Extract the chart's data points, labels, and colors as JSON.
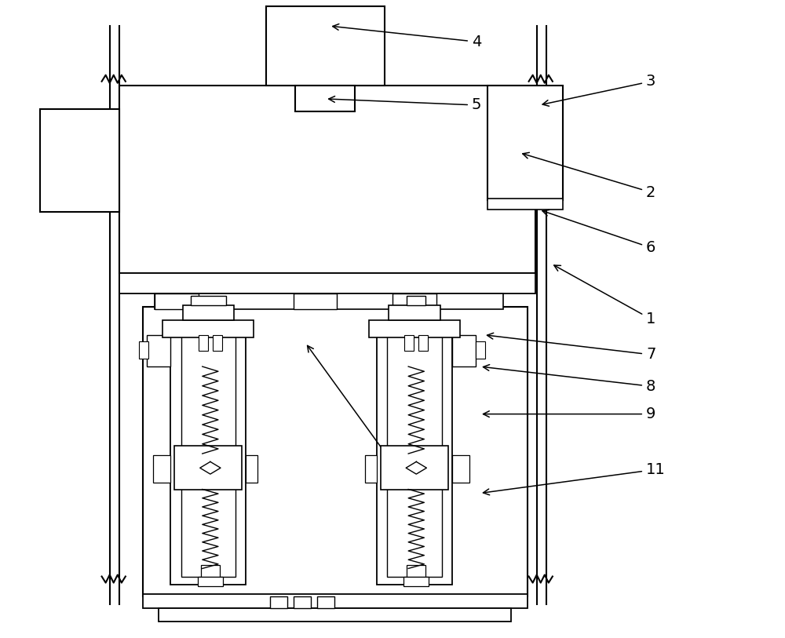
{
  "bg_color": "#ffffff",
  "line_color": "#000000",
  "lw": 1.3,
  "lw_thin": 0.8,
  "fig_width": 10.0,
  "fig_height": 8.13
}
